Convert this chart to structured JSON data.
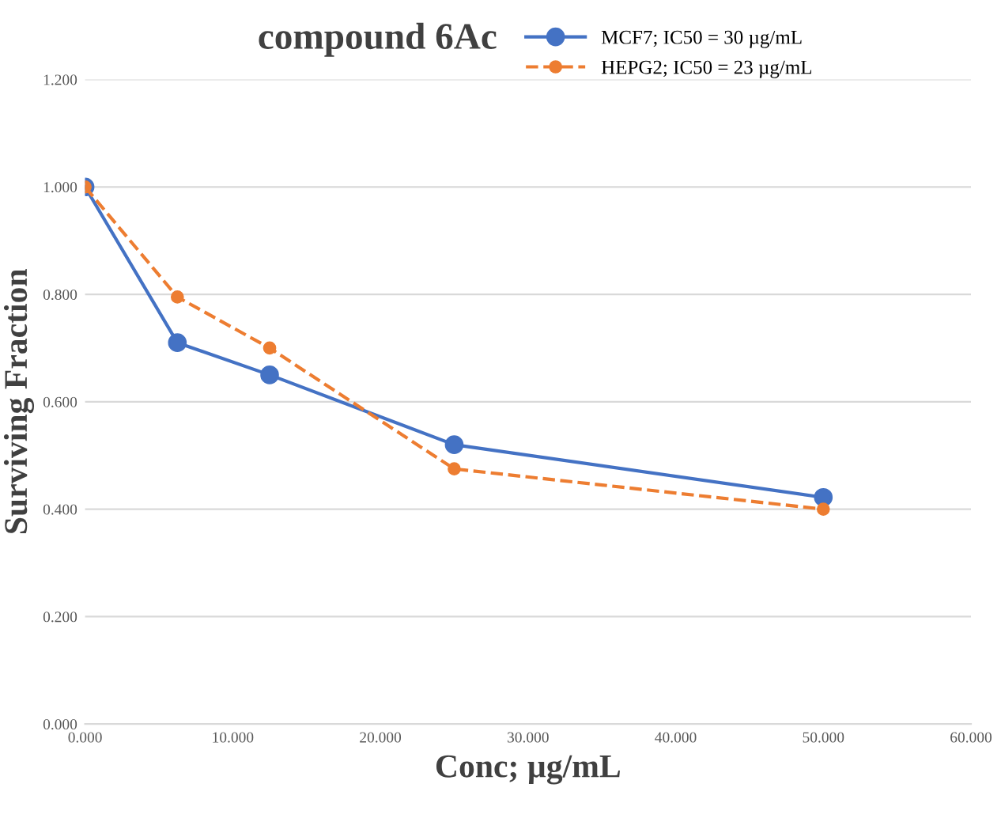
{
  "chart_data": {
    "type": "line",
    "title": "compound 6Ac",
    "xlabel": "Conc; µg/mL",
    "ylabel": "Surviving Fraction",
    "x": [
      0,
      6.25,
      12.5,
      25,
      50
    ],
    "series": [
      {
        "name": "MCF7; IC50 = 30 µg/mL",
        "color": "#4472c4",
        "values": [
          1.0,
          0.71,
          0.65,
          0.52,
          0.422
        ],
        "line_style": "solid"
      },
      {
        "name": "HEPG2; IC50 = 23 µg/mL",
        "color": "#ed7d31",
        "values": [
          1.0,
          0.795,
          0.7,
          0.475,
          0.4
        ],
        "line_style": "dashed"
      }
    ],
    "xlim": [
      0,
      60
    ],
    "xticks": [
      {
        "value": 0,
        "label": "0.000"
      },
      {
        "value": 10,
        "label": "10.000"
      },
      {
        "value": 20,
        "label": "20.000"
      },
      {
        "value": 30,
        "label": "30.000"
      },
      {
        "value": 40,
        "label": "40.000"
      },
      {
        "value": 50,
        "label": "50.000"
      },
      {
        "value": 60,
        "label": "60.000"
      }
    ],
    "ylim": [
      0,
      1.2
    ],
    "yticks": [
      {
        "value": 0,
        "label": "0.000"
      },
      {
        "value": 0.2,
        "label": "0.200"
      },
      {
        "value": 0.4,
        "label": "0.400"
      },
      {
        "value": 0.6,
        "label": "0.600"
      },
      {
        "value": 0.8,
        "label": "0.800"
      },
      {
        "value": 1.0,
        "label": "1.000"
      },
      {
        "value": 1.2,
        "label": "1.200"
      }
    ],
    "grid": "y",
    "legend": "top right",
    "marker": "circle"
  }
}
